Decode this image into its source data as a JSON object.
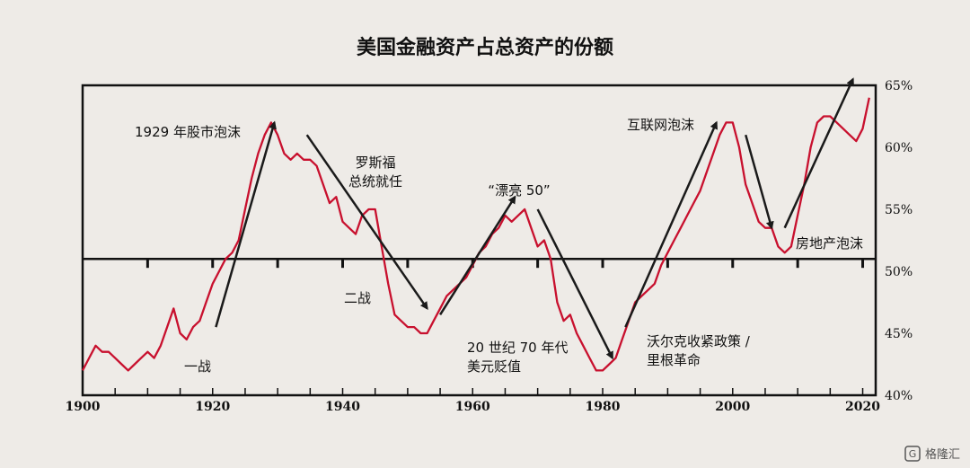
{
  "chart_data": {
    "type": "line",
    "title": "美国金融资产占总资产的份额",
    "xlabel": "",
    "ylabel": "",
    "xlim": [
      1900,
      2022
    ],
    "ylim": [
      40,
      65
    ],
    "x_ticks": [
      1900,
      1920,
      1940,
      1960,
      1980,
      2000,
      2020
    ],
    "y_ticks": [
      "40%",
      "45%",
      "50%",
      "55%",
      "60%",
      "65%"
    ],
    "y_tick_values": [
      40,
      45,
      50,
      55,
      60,
      65
    ],
    "reference_line": 51,
    "colors": {
      "series": "#c8102e",
      "arrow": "#1a1a1a",
      "frame": "#111111"
    },
    "series": [
      {
        "x": [
          1900,
          1901,
          1902,
          1903,
          1904,
          1905,
          1906,
          1907,
          1908,
          1909,
          1910,
          1911,
          1912,
          1913,
          1914,
          1915,
          1916,
          1917,
          1918,
          1919,
          1920,
          1921,
          1922,
          1923,
          1924,
          1925,
          1926,
          1927,
          1928,
          1929,
          1930,
          1931,
          1932,
          1933,
          1934,
          1935,
          1936,
          1937,
          1938,
          1939,
          1940,
          1941,
          1942,
          1943,
          1944,
          1945,
          1946,
          1947,
          1948,
          1949,
          1950,
          1951,
          1952,
          1953,
          1954,
          1955,
          1956,
          1957,
          1958,
          1959,
          1960,
          1961,
          1962,
          1963,
          1964,
          1965,
          1966,
          1967,
          1968,
          1969,
          1970,
          1971,
          1972,
          1973,
          1974,
          1975,
          1976,
          1977,
          1978,
          1979,
          1980,
          1981,
          1982,
          1983,
          1984,
          1985,
          1986,
          1987,
          1988,
          1989,
          1990,
          1991,
          1992,
          1993,
          1994,
          1995,
          1996,
          1997,
          1998,
          1999,
          2000,
          2001,
          2002,
          2003,
          2004,
          2005,
          2006,
          2007,
          2008,
          2009,
          2010,
          2011,
          2012,
          2013,
          2014,
          2015,
          2016,
          2017,
          2018,
          2019,
          2020,
          2021
        ],
        "values": [
          42.0,
          43.0,
          44.0,
          43.5,
          43.5,
          43.0,
          42.5,
          42.0,
          42.5,
          43.0,
          43.5,
          43.0,
          44.0,
          45.5,
          47.0,
          45.0,
          44.5,
          45.5,
          46.0,
          47.5,
          49.0,
          50.0,
          51.0,
          51.5,
          52.5,
          55.0,
          57.5,
          59.5,
          61.0,
          62.0,
          61.0,
          59.5,
          59.0,
          59.5,
          59.0,
          59.0,
          58.5,
          57.0,
          55.5,
          56.0,
          54.0,
          53.5,
          53.0,
          54.5,
          55.0,
          55.0,
          52.0,
          49.0,
          46.5,
          46.0,
          45.5,
          45.5,
          45.0,
          45.0,
          46.0,
          47.0,
          48.0,
          48.5,
          49.0,
          49.5,
          50.5,
          51.5,
          52.0,
          53.0,
          53.5,
          54.5,
          54.0,
          54.5,
          55.0,
          53.5,
          52.0,
          52.5,
          51.0,
          47.5,
          46.0,
          46.5,
          45.0,
          44.0,
          43.0,
          42.0,
          42.0,
          42.5,
          43.0,
          44.5,
          46.0,
          47.5,
          48.0,
          48.5,
          49.0,
          50.5,
          51.5,
          52.5,
          53.5,
          54.5,
          55.5,
          56.5,
          58.0,
          59.5,
          61.0,
          62.0,
          62.0,
          60.0,
          57.0,
          55.5,
          54.0,
          53.5,
          53.5,
          52.0,
          51.5,
          52.0,
          54.5,
          57.0,
          60.0,
          62.0,
          62.5,
          62.5,
          62.0,
          61.5,
          61.0,
          60.5,
          61.5,
          64.0
        ]
      }
    ],
    "annotations": [
      {
        "id": "bubble-1929",
        "lines": [
          "1929 年股市泡沫"
        ]
      },
      {
        "id": "roosevelt",
        "lines": [
          "罗斯福",
          "总统就任"
        ]
      },
      {
        "id": "nifty-50",
        "lines": [
          "“漂亮 50”"
        ]
      },
      {
        "id": "dotcom",
        "lines": [
          "互联网泡沫"
        ]
      },
      {
        "id": "housing",
        "lines": [
          "房地产泡沫"
        ]
      },
      {
        "id": "ww1",
        "lines": [
          "一战"
        ]
      },
      {
        "id": "ww2",
        "lines": [
          "二战"
        ]
      },
      {
        "id": "devaluation",
        "lines": [
          "20 世纪 70 年代",
          "美元贬值"
        ]
      },
      {
        "id": "volcker",
        "lines": [
          "沃尔克收紧政策 /",
          "里根革命"
        ]
      }
    ],
    "arrows": [
      {
        "id": "up-1920s",
        "from": [
          1920.5,
          45.5
        ],
        "to": [
          1929.5,
          62.0
        ]
      },
      {
        "id": "down-1930s",
        "from": [
          1934.5,
          61.0
        ],
        "to": [
          1953.0,
          47.0
        ]
      },
      {
        "id": "up-1950s",
        "from": [
          1955.0,
          46.5
        ],
        "to": [
          1966.5,
          56.0
        ]
      },
      {
        "id": "down-1970s",
        "from": [
          1970.0,
          55.0
        ],
        "to": [
          1981.5,
          43.0
        ]
      },
      {
        "id": "up-1980s",
        "from": [
          1983.5,
          45.5
        ],
        "to": [
          1997.5,
          62.0
        ]
      },
      {
        "id": "down-2000s",
        "from": [
          2002.0,
          61.0
        ],
        "to": [
          2006.0,
          53.5
        ]
      },
      {
        "id": "up-2000s",
        "from": [
          2008.0,
          53.5
        ],
        "to": [
          2018.5,
          65.5
        ]
      }
    ]
  },
  "watermark": {
    "label": "格隆汇",
    "icon": "gelonghui-logo-icon"
  }
}
